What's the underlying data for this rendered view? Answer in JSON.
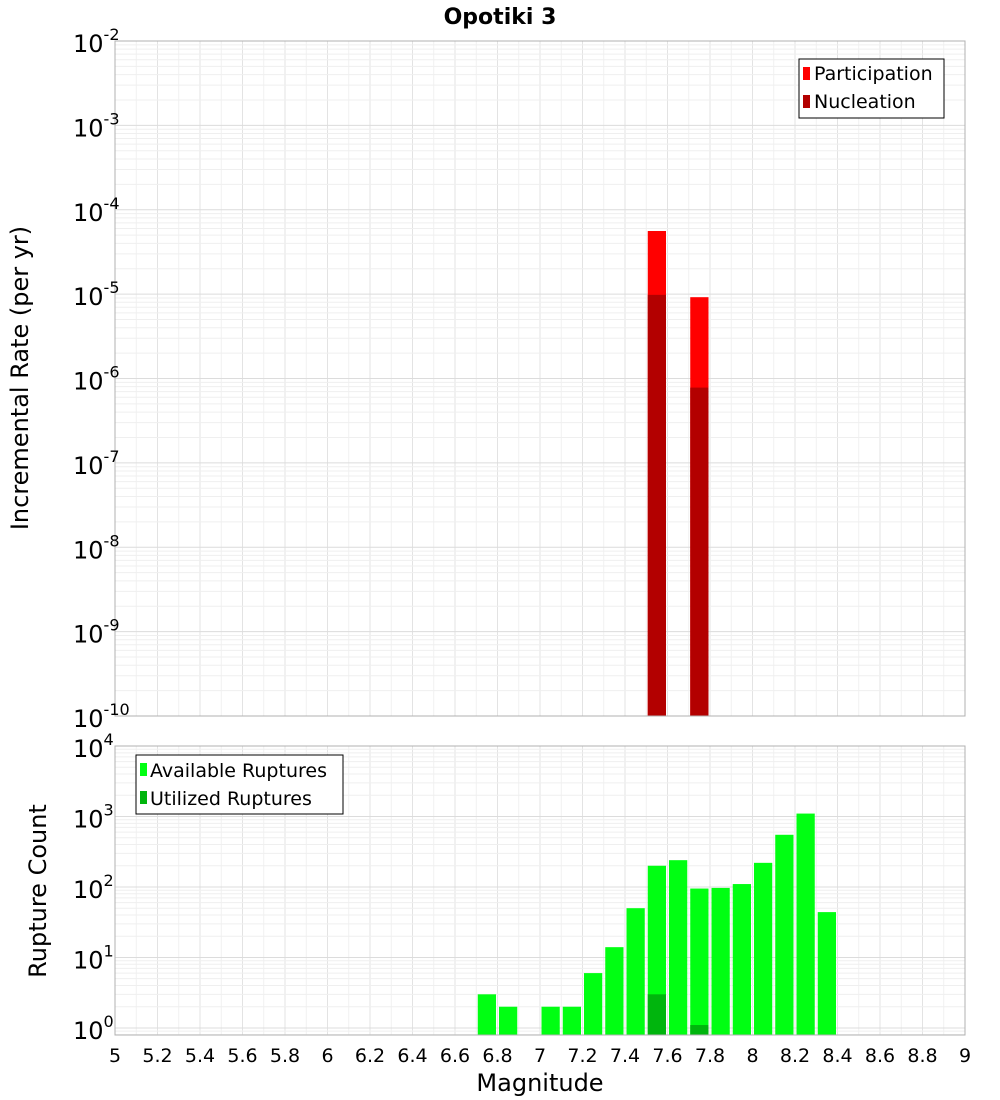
{
  "chart_data": [
    {
      "type": "bar",
      "title": "Opotiki 3",
      "xlabel": "Magnitude",
      "ylabel": "Incremental Rate (per yr)",
      "yscale": "log",
      "xlim": [
        5,
        9
      ],
      "ylim_exp": [
        -10,
        -2
      ],
      "bin_width": 0.1,
      "y_ticks": [
        {
          "base": "10",
          "exp": "-10"
        },
        {
          "base": "10",
          "exp": "-9"
        },
        {
          "base": "10",
          "exp": "-8"
        },
        {
          "base": "10",
          "exp": "-7"
        },
        {
          "base": "10",
          "exp": "-6"
        },
        {
          "base": "10",
          "exp": "-5"
        },
        {
          "base": "10",
          "exp": "-4"
        },
        {
          "base": "10",
          "exp": "-3"
        },
        {
          "base": "10",
          "exp": "-2"
        }
      ],
      "legend_position": "top-right",
      "series": [
        {
          "name": "Participation",
          "color": "#ff0000",
          "x": [
            7.55,
            7.75
          ],
          "values": [
            5.6e-05,
            9.2e-06
          ]
        },
        {
          "name": "Nucleation",
          "color": "#b30000",
          "x": [
            7.55,
            7.75
          ],
          "values": [
            9.8e-06,
            7.8e-07
          ]
        }
      ]
    },
    {
      "type": "bar",
      "xlabel": "Magnitude",
      "ylabel": "Rupture Count",
      "yscale": "log",
      "xlim": [
        5,
        9
      ],
      "ylim_exp": [
        -0.1,
        4
      ],
      "bin_width": 0.1,
      "x_ticks": [
        "5",
        "5.2",
        "5.4",
        "5.6",
        "5.8",
        "6",
        "6.2",
        "6.4",
        "6.6",
        "6.8",
        "7",
        "7.2",
        "7.4",
        "7.6",
        "7.8",
        "8",
        "8.2",
        "8.4",
        "8.6",
        "8.8",
        "9"
      ],
      "y_ticks": [
        {
          "base": "10",
          "exp": "0"
        },
        {
          "base": "10",
          "exp": "1"
        },
        {
          "base": "10",
          "exp": "2"
        },
        {
          "base": "10",
          "exp": "3"
        },
        {
          "base": "10",
          "exp": "4"
        }
      ],
      "legend_position": "top-left",
      "series": [
        {
          "name": "Available Ruptures",
          "color": "#00ff12",
          "x": [
            6.75,
            6.85,
            7.05,
            7.15,
            7.25,
            7.35,
            7.45,
            7.55,
            7.65,
            7.75,
            7.85,
            7.95,
            8.05,
            8.15,
            8.25,
            8.35
          ],
          "values": [
            3,
            2,
            2,
            2,
            6,
            14,
            50,
            200,
            240,
            95,
            97,
            110,
            220,
            550,
            1100,
            44
          ]
        },
        {
          "name": "Utilized Ruptures",
          "color": "#00b50d",
          "x": [
            7.55,
            7.75
          ],
          "values": [
            3,
            1.1
          ]
        }
      ]
    }
  ]
}
